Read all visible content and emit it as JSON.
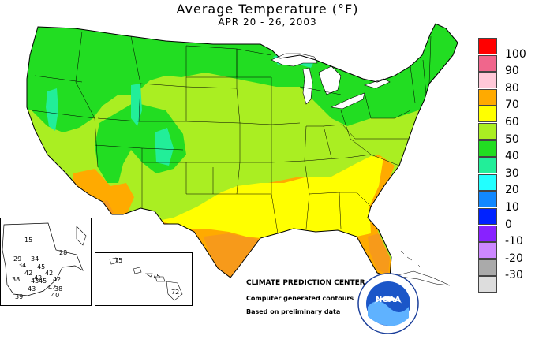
{
  "header": {
    "title": "Average Temperature (°F)",
    "subtitle": "APR 20 - 26, 2003"
  },
  "legend": [
    {
      "label": "100",
      "color": "#ff0000"
    },
    {
      "label": "90",
      "color": "#f0668c"
    },
    {
      "label": "80",
      "color": "#ffc8d8"
    },
    {
      "label": "70",
      "color": "#ffaa00"
    },
    {
      "label": "60",
      "color": "#ffff00"
    },
    {
      "label": "50",
      "color": "#aaee22"
    },
    {
      "label": "40",
      "color": "#22dd22"
    },
    {
      "label": "30",
      "color": "#22ee99"
    },
    {
      "label": "20",
      "color": "#22ffff"
    },
    {
      "label": "10",
      "color": "#1188ff"
    },
    {
      "label": "0",
      "color": "#0022ff"
    },
    {
      "label": "-10",
      "color": "#8822ff"
    },
    {
      "label": "-20",
      "color": "#cc88ff"
    },
    {
      "label": "-30",
      "color": "#aaaaaa"
    },
    {
      "label": "",
      "color": "#dddddd"
    }
  ],
  "credits": {
    "org": "CLIMATE PREDICTION CENTER, NOAA",
    "line1": "Computer generated contours",
    "line2": "Based on preliminary data"
  },
  "logo_text": "NOAA",
  "alaska_values": [
    "15",
    "28",
    "29",
    "34",
    "34",
    "45",
    "42",
    "38",
    "42",
    "43",
    "45",
    "42",
    "42",
    "43",
    "42",
    "38",
    "39",
    "40"
  ],
  "hawaii_values": [
    "75",
    "75",
    "72"
  ]
}
